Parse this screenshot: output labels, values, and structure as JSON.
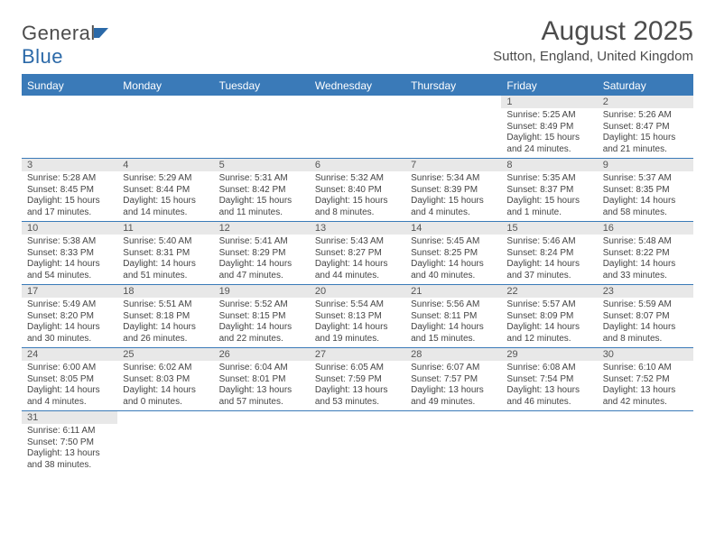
{
  "logo": {
    "text1": "General",
    "text2": "Blue",
    "shape_color": "#2b69a8"
  },
  "title": "August 2025",
  "subtitle": "Sutton, England, United Kingdom",
  "colors": {
    "header_bg": "#3a7ab8",
    "header_text": "#ffffff",
    "daynum_bg": "#e8e8e8",
    "row_border": "#3a7ab8",
    "body_text": "#444444"
  },
  "weekdays": [
    "Sunday",
    "Monday",
    "Tuesday",
    "Wednesday",
    "Thursday",
    "Friday",
    "Saturday"
  ],
  "first_weekday_index": 5,
  "days": [
    {
      "n": 1,
      "sunrise": "5:25 AM",
      "sunset": "8:49 PM",
      "daylight": "15 hours and 24 minutes."
    },
    {
      "n": 2,
      "sunrise": "5:26 AM",
      "sunset": "8:47 PM",
      "daylight": "15 hours and 21 minutes."
    },
    {
      "n": 3,
      "sunrise": "5:28 AM",
      "sunset": "8:45 PM",
      "daylight": "15 hours and 17 minutes."
    },
    {
      "n": 4,
      "sunrise": "5:29 AM",
      "sunset": "8:44 PM",
      "daylight": "15 hours and 14 minutes."
    },
    {
      "n": 5,
      "sunrise": "5:31 AM",
      "sunset": "8:42 PM",
      "daylight": "15 hours and 11 minutes."
    },
    {
      "n": 6,
      "sunrise": "5:32 AM",
      "sunset": "8:40 PM",
      "daylight": "15 hours and 8 minutes."
    },
    {
      "n": 7,
      "sunrise": "5:34 AM",
      "sunset": "8:39 PM",
      "daylight": "15 hours and 4 minutes."
    },
    {
      "n": 8,
      "sunrise": "5:35 AM",
      "sunset": "8:37 PM",
      "daylight": "15 hours and 1 minute."
    },
    {
      "n": 9,
      "sunrise": "5:37 AM",
      "sunset": "8:35 PM",
      "daylight": "14 hours and 58 minutes."
    },
    {
      "n": 10,
      "sunrise": "5:38 AM",
      "sunset": "8:33 PM",
      "daylight": "14 hours and 54 minutes."
    },
    {
      "n": 11,
      "sunrise": "5:40 AM",
      "sunset": "8:31 PM",
      "daylight": "14 hours and 51 minutes."
    },
    {
      "n": 12,
      "sunrise": "5:41 AM",
      "sunset": "8:29 PM",
      "daylight": "14 hours and 47 minutes."
    },
    {
      "n": 13,
      "sunrise": "5:43 AM",
      "sunset": "8:27 PM",
      "daylight": "14 hours and 44 minutes."
    },
    {
      "n": 14,
      "sunrise": "5:45 AM",
      "sunset": "8:25 PM",
      "daylight": "14 hours and 40 minutes."
    },
    {
      "n": 15,
      "sunrise": "5:46 AM",
      "sunset": "8:24 PM",
      "daylight": "14 hours and 37 minutes."
    },
    {
      "n": 16,
      "sunrise": "5:48 AM",
      "sunset": "8:22 PM",
      "daylight": "14 hours and 33 minutes."
    },
    {
      "n": 17,
      "sunrise": "5:49 AM",
      "sunset": "8:20 PM",
      "daylight": "14 hours and 30 minutes."
    },
    {
      "n": 18,
      "sunrise": "5:51 AM",
      "sunset": "8:18 PM",
      "daylight": "14 hours and 26 minutes."
    },
    {
      "n": 19,
      "sunrise": "5:52 AM",
      "sunset": "8:15 PM",
      "daylight": "14 hours and 22 minutes."
    },
    {
      "n": 20,
      "sunrise": "5:54 AM",
      "sunset": "8:13 PM",
      "daylight": "14 hours and 19 minutes."
    },
    {
      "n": 21,
      "sunrise": "5:56 AM",
      "sunset": "8:11 PM",
      "daylight": "14 hours and 15 minutes."
    },
    {
      "n": 22,
      "sunrise": "5:57 AM",
      "sunset": "8:09 PM",
      "daylight": "14 hours and 12 minutes."
    },
    {
      "n": 23,
      "sunrise": "5:59 AM",
      "sunset": "8:07 PM",
      "daylight": "14 hours and 8 minutes."
    },
    {
      "n": 24,
      "sunrise": "6:00 AM",
      "sunset": "8:05 PM",
      "daylight": "14 hours and 4 minutes."
    },
    {
      "n": 25,
      "sunrise": "6:02 AM",
      "sunset": "8:03 PM",
      "daylight": "14 hours and 0 minutes."
    },
    {
      "n": 26,
      "sunrise": "6:04 AM",
      "sunset": "8:01 PM",
      "daylight": "13 hours and 57 minutes."
    },
    {
      "n": 27,
      "sunrise": "6:05 AM",
      "sunset": "7:59 PM",
      "daylight": "13 hours and 53 minutes."
    },
    {
      "n": 28,
      "sunrise": "6:07 AM",
      "sunset": "7:57 PM",
      "daylight": "13 hours and 49 minutes."
    },
    {
      "n": 29,
      "sunrise": "6:08 AM",
      "sunset": "7:54 PM",
      "daylight": "13 hours and 46 minutes."
    },
    {
      "n": 30,
      "sunrise": "6:10 AM",
      "sunset": "7:52 PM",
      "daylight": "13 hours and 42 minutes."
    },
    {
      "n": 31,
      "sunrise": "6:11 AM",
      "sunset": "7:50 PM",
      "daylight": "13 hours and 38 minutes."
    }
  ],
  "labels": {
    "sunrise": "Sunrise:",
    "sunset": "Sunset:",
    "daylight": "Daylight:"
  }
}
